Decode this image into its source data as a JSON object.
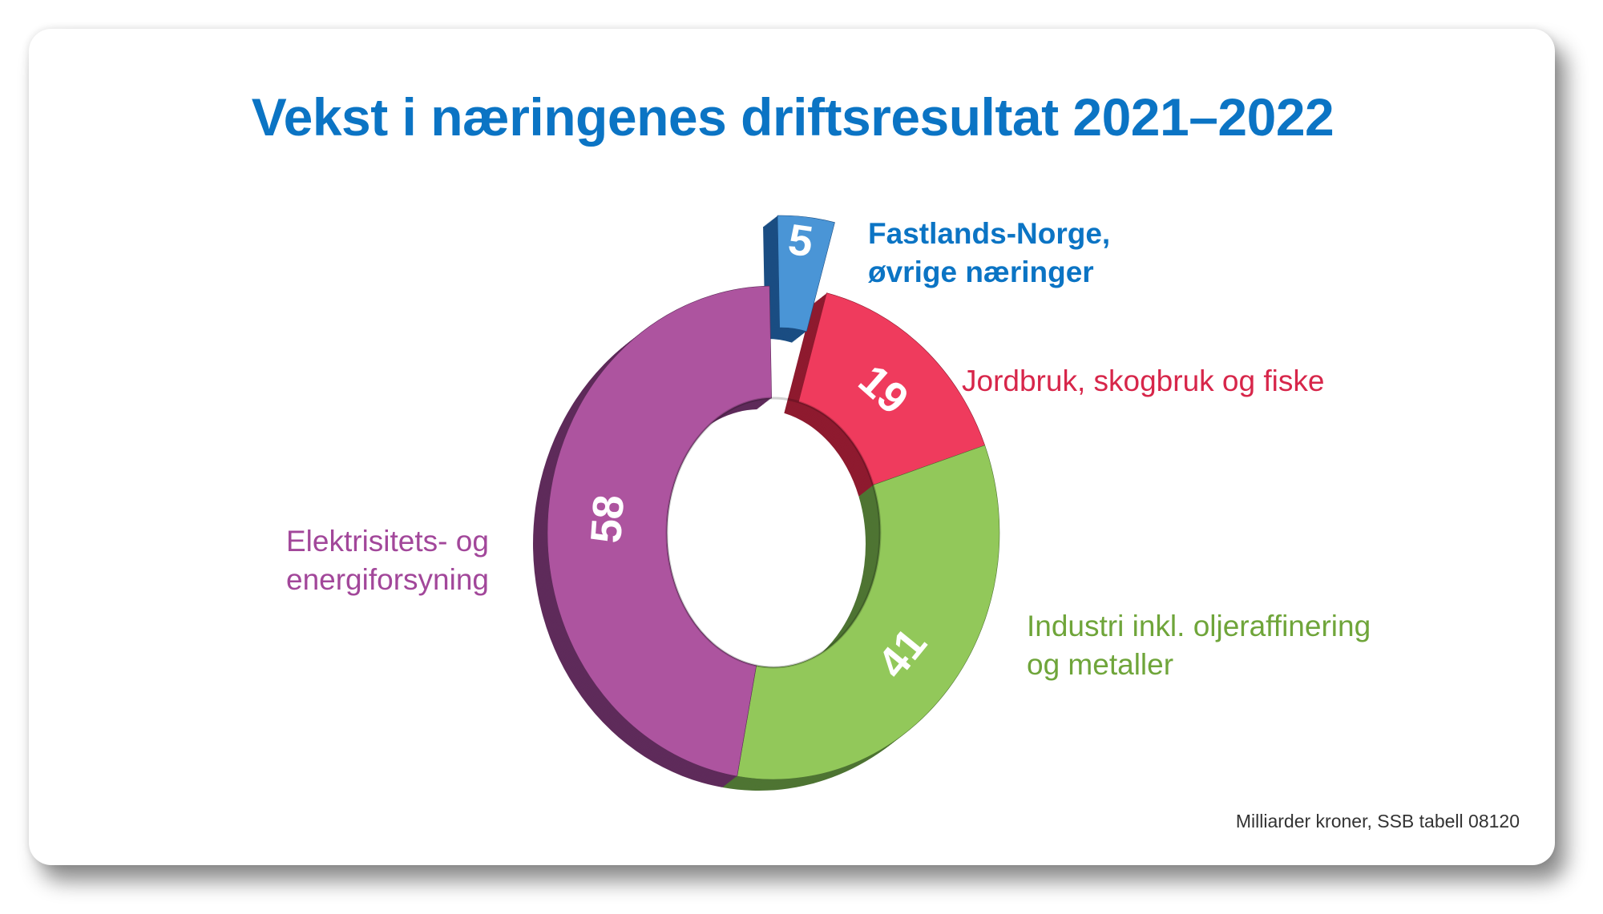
{
  "title": "Vekst i næringenes driftsresultat 2021–2022",
  "footnote": "Milliarder kroner, SSB tabell 08120",
  "chart_data": {
    "type": "pie",
    "style": "3d-donut",
    "title": "Vekst i næringenes driftsresultat 2021–2022",
    "unit": "Milliarder kroner",
    "source": "SSB tabell 08120",
    "slices": [
      {
        "label_lines": [
          "Fastlands-Norge,",
          "øvrige næringer"
        ],
        "value": 5,
        "color": "#4a95d6",
        "side": "#1a4d82",
        "label_color": "#0b74c4",
        "bold_label": true,
        "exploded": true
      },
      {
        "label_lines": [
          "Jordbruk, skogbruk og fiske"
        ],
        "value": 19,
        "color": "#ef3b5d",
        "side": "#8e1a2f",
        "label_color": "#d7264a",
        "bold_label": false,
        "exploded": false
      },
      {
        "label_lines": [
          "Industri inkl. oljeraffinering",
          "og metaller"
        ],
        "value": 41,
        "color": "#92c85a",
        "side": "#4e7433",
        "label_color": "#6fa53a",
        "bold_label": false,
        "exploded": false
      },
      {
        "label_lines": [
          "Elektrisitets- og",
          "energiforsyning"
        ],
        "value": 58,
        "color": "#ad549f",
        "side": "#5e2b5a",
        "label_color": "#a2479a",
        "bold_label": false,
        "exploded": false
      }
    ]
  }
}
